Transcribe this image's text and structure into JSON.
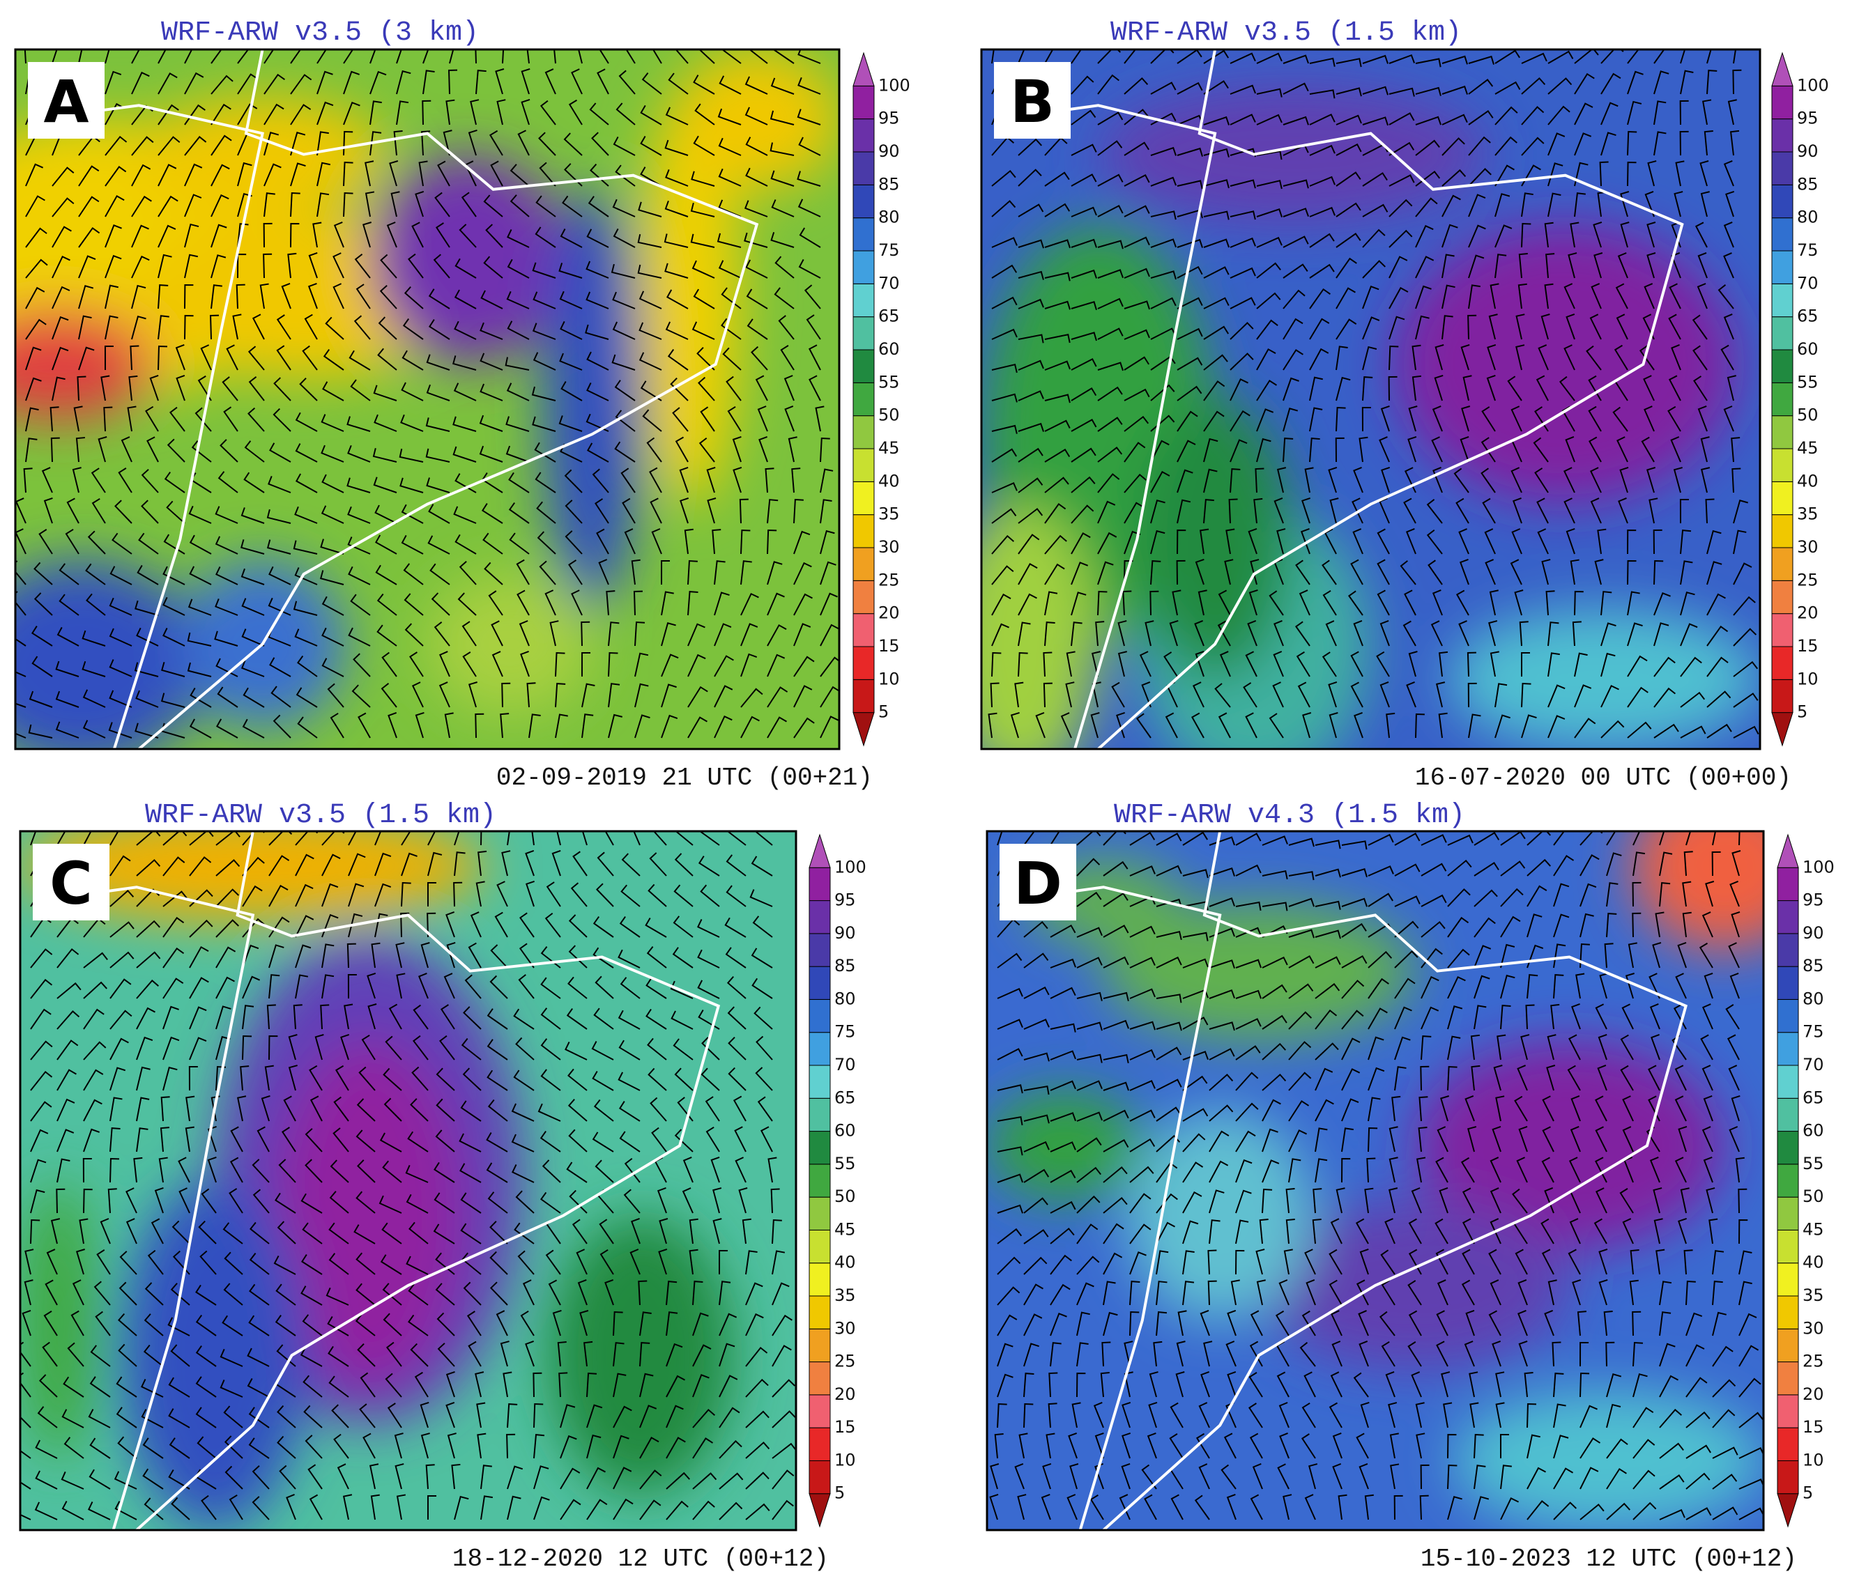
{
  "panels": [
    {
      "label": "A",
      "title": "WRF-ARW v3.5 (3 km)",
      "timestamp": "02-09-2019 21 UTC (00+21)"
    },
    {
      "label": "B",
      "title": "WRF-ARW v3.5 (1.5 km)",
      "timestamp": "16-07-2020 00 UTC (00+00)"
    },
    {
      "label": "C",
      "title": "WRF-ARW v3.5 (1.5 km)",
      "timestamp": "18-12-2020 12 UTC (00+12)"
    },
    {
      "label": "D",
      "title": "WRF-ARW v4.3 (1.5 km)",
      "timestamp": "15-10-2023 12 UTC (00+12)"
    }
  ],
  "colorbar": {
    "ticks": [
      100,
      95,
      90,
      85,
      80,
      75,
      70,
      65,
      60,
      55,
      50,
      45,
      40,
      35,
      30,
      25,
      20,
      15,
      10,
      5
    ]
  }
}
